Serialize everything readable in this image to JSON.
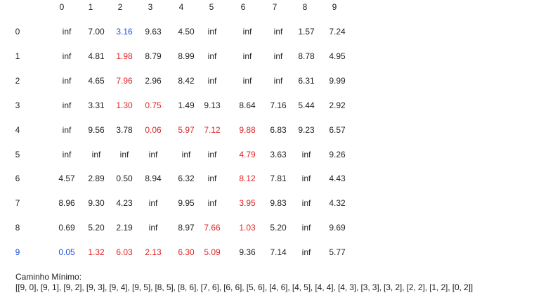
{
  "matrix": {
    "column_headers": [
      "0",
      "1",
      "2",
      "3",
      "4",
      "5",
      "6",
      "7",
      "8",
      "9"
    ],
    "row_labels": [
      "0",
      "1",
      "2",
      "3",
      "4",
      "5",
      "6",
      "7",
      "8",
      "9"
    ],
    "highlighted_row_label": "9",
    "highlight_colors": {
      "path": "#e02424",
      "endpoint": "#1f4fe0",
      "default": "#222222"
    },
    "rows": [
      [
        {
          "v": "inf",
          "c": "default"
        },
        {
          "v": "7.00",
          "c": "default"
        },
        {
          "v": "3.16",
          "c": "endpoint"
        },
        {
          "v": "9.63",
          "c": "default"
        },
        {
          "v": "4.50",
          "c": "default"
        },
        {
          "v": "inf",
          "c": "default"
        },
        {
          "v": "inf",
          "c": "default"
        },
        {
          "v": "inf",
          "c": "default"
        },
        {
          "v": "1.57",
          "c": "default"
        },
        {
          "v": "7.24",
          "c": "default"
        }
      ],
      [
        {
          "v": "inf",
          "c": "default"
        },
        {
          "v": "4.81",
          "c": "default"
        },
        {
          "v": "1.98",
          "c": "path"
        },
        {
          "v": "8.79",
          "c": "default"
        },
        {
          "v": "8.99",
          "c": "default"
        },
        {
          "v": "inf",
          "c": "default"
        },
        {
          "v": "inf",
          "c": "default"
        },
        {
          "v": "inf",
          "c": "default"
        },
        {
          "v": "8.78",
          "c": "default"
        },
        {
          "v": "4.95",
          "c": "default"
        }
      ],
      [
        {
          "v": "inf",
          "c": "default"
        },
        {
          "v": "4.65",
          "c": "default"
        },
        {
          "v": "7.96",
          "c": "path"
        },
        {
          "v": "2.96",
          "c": "default"
        },
        {
          "v": "8.42",
          "c": "default"
        },
        {
          "v": "inf",
          "c": "default"
        },
        {
          "v": "inf",
          "c": "default"
        },
        {
          "v": "inf",
          "c": "default"
        },
        {
          "v": "6.31",
          "c": "default"
        },
        {
          "v": "9.99",
          "c": "default"
        }
      ],
      [
        {
          "v": "inf",
          "c": "default"
        },
        {
          "v": "3.31",
          "c": "default"
        },
        {
          "v": "1.30",
          "c": "path"
        },
        {
          "v": "0.75",
          "c": "path"
        },
        {
          "v": "1.49",
          "c": "default"
        },
        {
          "v": "9.13",
          "c": "default"
        },
        {
          "v": "8.64",
          "c": "default"
        },
        {
          "v": "7.16",
          "c": "default"
        },
        {
          "v": "5.44",
          "c": "default"
        },
        {
          "v": "2.92",
          "c": "default"
        }
      ],
      [
        {
          "v": "inf",
          "c": "default"
        },
        {
          "v": "9.56",
          "c": "default"
        },
        {
          "v": "3.78",
          "c": "default"
        },
        {
          "v": "0.06",
          "c": "path"
        },
        {
          "v": "5.97",
          "c": "path"
        },
        {
          "v": "7.12",
          "c": "path"
        },
        {
          "v": "9.88",
          "c": "path"
        },
        {
          "v": "6.83",
          "c": "default"
        },
        {
          "v": "9.23",
          "c": "default"
        },
        {
          "v": "6.57",
          "c": "default"
        }
      ],
      [
        {
          "v": "inf",
          "c": "default"
        },
        {
          "v": "inf",
          "c": "default"
        },
        {
          "v": "inf",
          "c": "default"
        },
        {
          "v": "inf",
          "c": "default"
        },
        {
          "v": "inf",
          "c": "default"
        },
        {
          "v": "inf",
          "c": "default"
        },
        {
          "v": "4.79",
          "c": "path"
        },
        {
          "v": "3.63",
          "c": "default"
        },
        {
          "v": "inf",
          "c": "default"
        },
        {
          "v": "9.26",
          "c": "default"
        }
      ],
      [
        {
          "v": "4.57",
          "c": "default"
        },
        {
          "v": "2.89",
          "c": "default"
        },
        {
          "v": "0.50",
          "c": "default"
        },
        {
          "v": "8.94",
          "c": "default"
        },
        {
          "v": "6.32",
          "c": "default"
        },
        {
          "v": "inf",
          "c": "default"
        },
        {
          "v": "8.12",
          "c": "path"
        },
        {
          "v": "7.81",
          "c": "default"
        },
        {
          "v": "inf",
          "c": "default"
        },
        {
          "v": "4.43",
          "c": "default"
        }
      ],
      [
        {
          "v": "8.96",
          "c": "default"
        },
        {
          "v": "9.30",
          "c": "default"
        },
        {
          "v": "4.23",
          "c": "default"
        },
        {
          "v": "inf",
          "c": "default"
        },
        {
          "v": "9.95",
          "c": "default"
        },
        {
          "v": "inf",
          "c": "default"
        },
        {
          "v": "3.95",
          "c": "path"
        },
        {
          "v": "9.83",
          "c": "default"
        },
        {
          "v": "inf",
          "c": "default"
        },
        {
          "v": "4.32",
          "c": "default"
        }
      ],
      [
        {
          "v": "0.69",
          "c": "default"
        },
        {
          "v": "5.20",
          "c": "default"
        },
        {
          "v": "2.19",
          "c": "default"
        },
        {
          "v": "inf",
          "c": "default"
        },
        {
          "v": "8.97",
          "c": "default"
        },
        {
          "v": "7.66",
          "c": "path"
        },
        {
          "v": "1.03",
          "c": "path"
        },
        {
          "v": "5.20",
          "c": "default"
        },
        {
          "v": "inf",
          "c": "default"
        },
        {
          "v": "9.69",
          "c": "default"
        }
      ],
      [
        {
          "v": "0.05",
          "c": "endpoint"
        },
        {
          "v": "1.32",
          "c": "path"
        },
        {
          "v": "6.03",
          "c": "path"
        },
        {
          "v": "2.13",
          "c": "path"
        },
        {
          "v": "6.30",
          "c": "path"
        },
        {
          "v": "5.09",
          "c": "path"
        },
        {
          "v": "9.36",
          "c": "default"
        },
        {
          "v": "7.14",
          "c": "default"
        },
        {
          "v": "inf",
          "c": "default"
        },
        {
          "v": "5.77",
          "c": "default"
        }
      ]
    ]
  },
  "result": {
    "title": "Caminho Mínimo:",
    "path": "[[9, 0], [9, 1], [9, 2], [9, 3], [9, 4], [9, 5], [8, 5], [8, 6], [7, 6], [6, 6], [5, 6], [4, 6], [4, 5], [4, 4], [4, 3], [3, 3], [3, 2], [2, 2], [1, 2], [0, 2]]"
  }
}
